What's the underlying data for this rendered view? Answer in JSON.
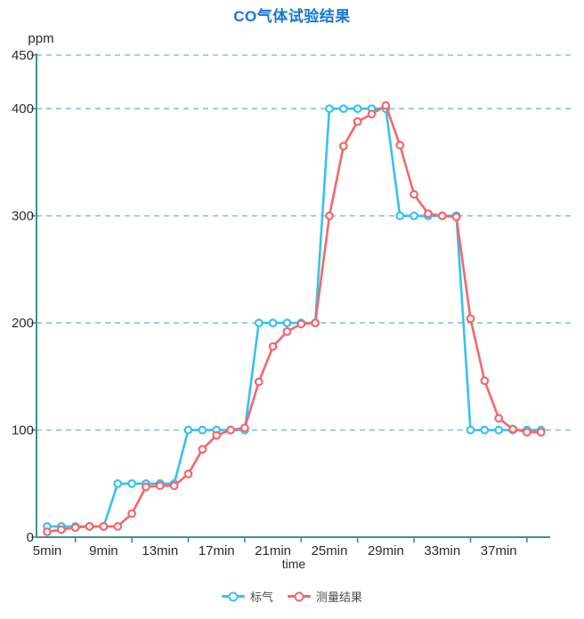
{
  "title": "CO气体试验结果",
  "colors": {
    "title": "#1576d2",
    "axis": "#3f8f93",
    "grid": "#8cc3c6",
    "tick_text": "#2b2b2b",
    "legend_text": "#4d4d4d",
    "series_standard": "#38c1ef",
    "series_measured": "#f2686c"
  },
  "chart_data": {
    "type": "line",
    "title": "CO气体试验结果",
    "xlabel": "time",
    "ylabel": "ppm",
    "ylim": [
      0,
      450
    ],
    "y_ticks": [
      0,
      100,
      200,
      300,
      400,
      450
    ],
    "x": [
      5,
      6,
      7,
      8,
      9,
      10,
      11,
      12,
      13,
      14,
      15,
      16,
      17,
      18,
      19,
      20,
      21,
      22,
      23,
      24,
      25,
      26,
      27,
      28,
      29,
      30,
      31,
      32,
      33,
      34,
      35,
      36,
      37,
      38,
      39,
      40
    ],
    "x_unit": "min",
    "x_tick_labels": [
      "5min",
      "9min",
      "13min",
      "17min",
      "21min",
      "25min",
      "29min",
      "33min",
      "37min"
    ],
    "x_tick_label_positions": [
      5,
      9,
      13,
      17,
      21,
      25,
      29,
      33,
      37
    ],
    "x_boundary_ticks": [
      7,
      11,
      15,
      19,
      23,
      27,
      31,
      35,
      39
    ],
    "grid": "horizontal-dashed",
    "legend_position": "bottom",
    "marker": "open-circle",
    "series": [
      {
        "name": "标气",
        "color": "#38c1ef",
        "values": [
          10,
          10,
          10,
          10,
          10,
          50,
          50,
          50,
          50,
          50,
          100,
          100,
          100,
          100,
          100,
          200,
          200,
          200,
          200,
          200,
          400,
          400,
          400,
          400,
          400,
          300,
          300,
          300,
          300,
          300,
          100,
          100,
          100,
          100,
          100,
          100
        ]
      },
      {
        "name": "测量结果",
        "color": "#f2686c",
        "values": [
          5,
          7,
          9,
          10,
          10,
          10,
          22,
          47,
          48,
          48,
          59,
          82,
          95,
          100,
          102,
          145,
          178,
          192,
          199,
          200,
          300,
          365,
          388,
          395,
          403,
          366,
          320,
          302,
          300,
          299,
          204,
          146,
          111,
          101,
          98,
          98
        ]
      }
    ]
  }
}
